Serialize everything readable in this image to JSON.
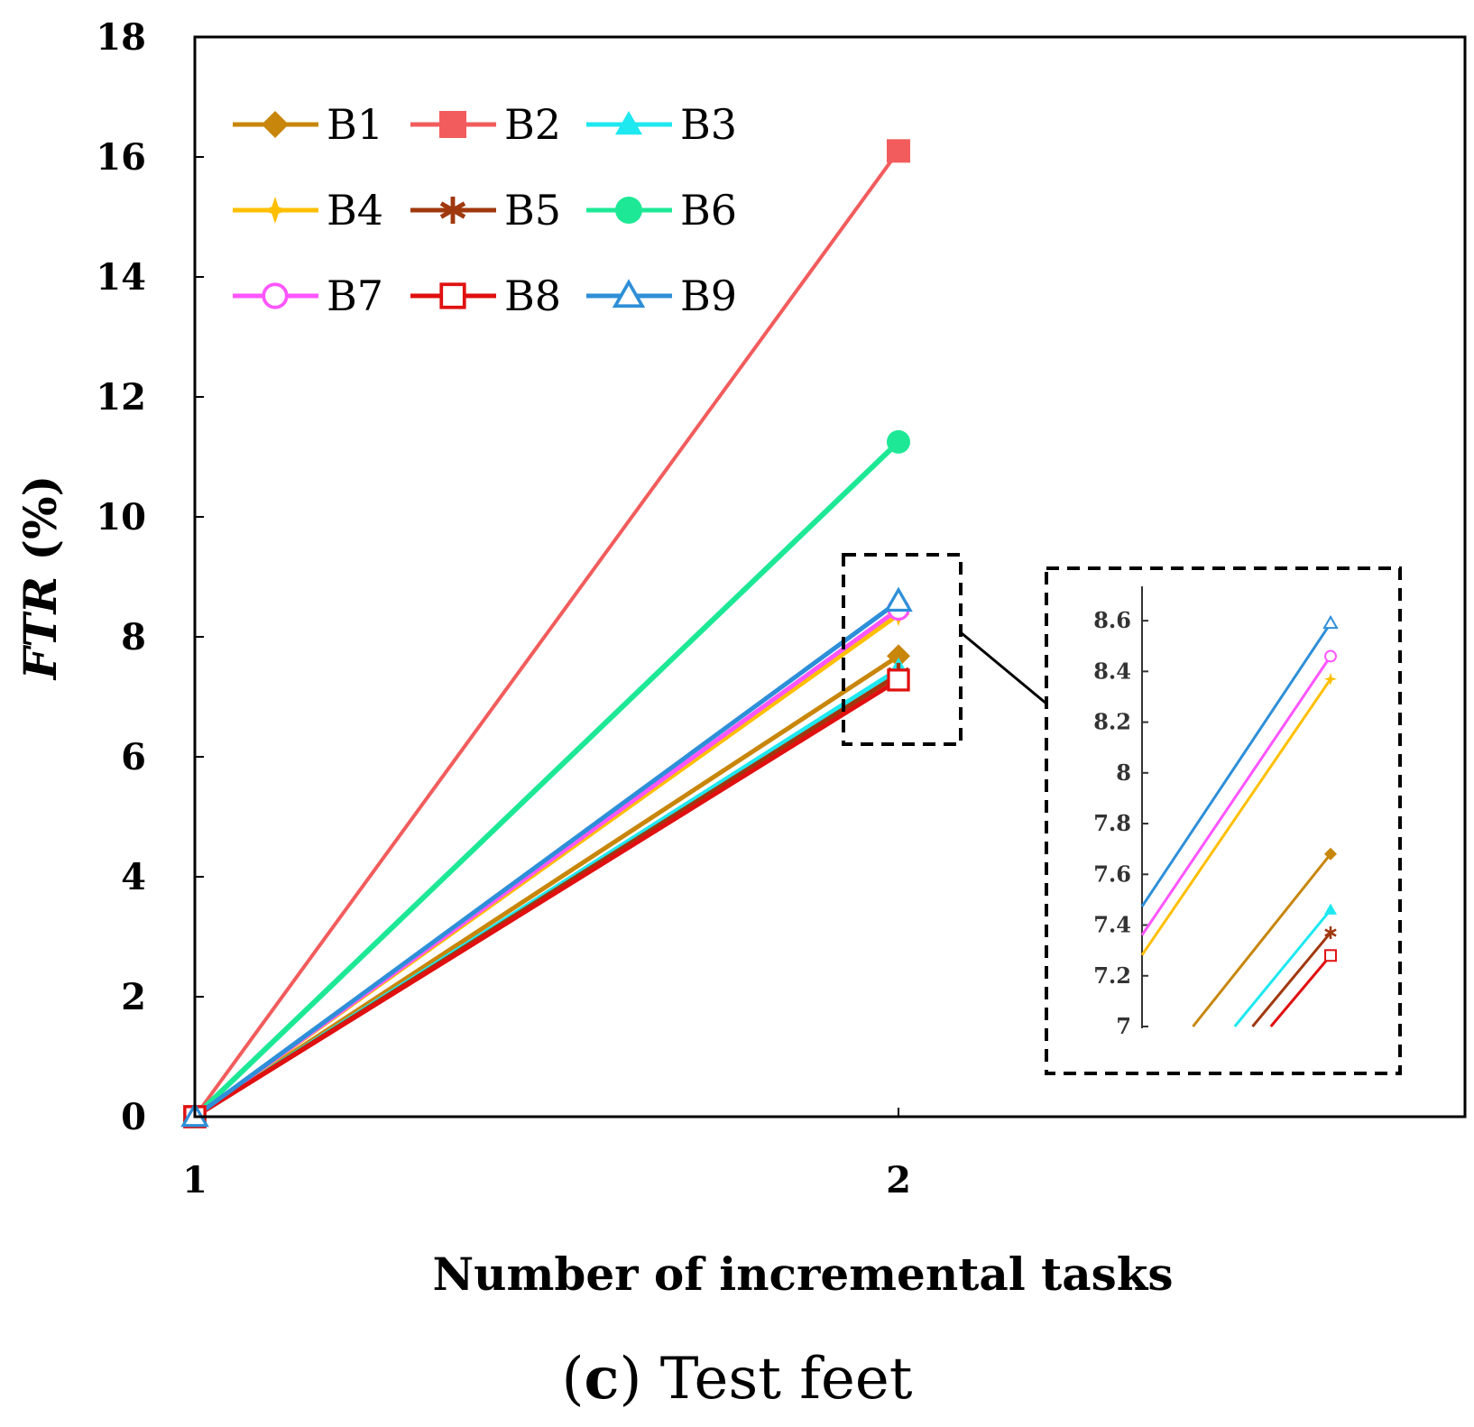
{
  "chart_data": {
    "type": "line",
    "xlabel": "Number of incremental tasks",
    "ylabel_italic": "FTR",
    "ylabel_unit": " (%)",
    "x": [
      1,
      2
    ],
    "x_ticks": [
      "1",
      "2"
    ],
    "ylim": [
      0,
      18
    ],
    "y_ticks": [
      "0",
      "2",
      "4",
      "6",
      "8",
      "10",
      "12",
      "14",
      "16",
      "18"
    ],
    "grid": false,
    "legend_position": "top-left",
    "series": [
      {
        "name": "B1",
        "values": [
          0,
          7.68
        ],
        "color": "#C8860A",
        "marker": "diamond-filled"
      },
      {
        "name": "B2",
        "values": [
          0,
          16.1
        ],
        "color": "#F25C5C",
        "marker": "square-filled"
      },
      {
        "name": "B3",
        "values": [
          0,
          7.46
        ],
        "color": "#1EE8F0",
        "marker": "triangle-filled"
      },
      {
        "name": "B4",
        "values": [
          0,
          8.37
        ],
        "color": "#FFBF00",
        "marker": "star-filled"
      },
      {
        "name": "B5",
        "values": [
          0,
          7.37
        ],
        "color": "#A0380E",
        "marker": "asterisk"
      },
      {
        "name": "B6",
        "values": [
          0,
          11.25
        ],
        "color": "#1DE896",
        "marker": "circle-filled"
      },
      {
        "name": "B7",
        "values": [
          0,
          8.46
        ],
        "color": "#FF55FF",
        "marker": "circle-open"
      },
      {
        "name": "B8",
        "values": [
          0,
          7.28
        ],
        "color": "#E01010",
        "marker": "square-open"
      },
      {
        "name": "B9",
        "values": [
          0,
          8.59
        ],
        "color": "#2E8FD8",
        "marker": "triangle-open"
      }
    ],
    "inset": {
      "ylim": [
        7,
        8.7
      ],
      "y_ticks": [
        "7",
        "7.2",
        "7.4",
        "7.6",
        "7.8",
        "8",
        "8.2",
        "8.4",
        "8.6"
      ]
    },
    "caption_letter": "c",
    "caption_open": "(",
    "caption_close": ")",
    "caption_text": " Test feet"
  }
}
